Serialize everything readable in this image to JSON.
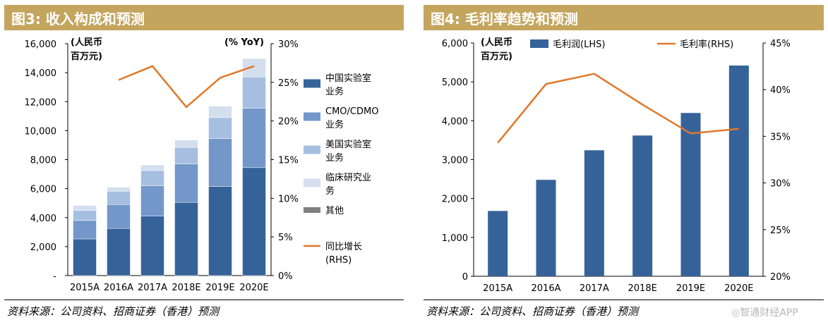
{
  "watermark": "◎智通财经APP",
  "colors": {
    "header": "#C4A55E",
    "china_lab": "#36629A",
    "cmo": "#7397C9",
    "us_lab": "#A6BFE0",
    "clinical": "#D3DFEF",
    "other": "#808080",
    "growth_line": "#E0782A",
    "gross_profit_bar": "#36629A",
    "margin_line": "#E0782A"
  },
  "left_panel": {
    "title": "图3:  收入构成和预测",
    "source": "资料来源：公司资料、招商证券（香港）预测"
  },
  "right_panel": {
    "title": "图4:  毛利率趋势和预测",
    "source": "资料来源：公司资料、招商证券（香港）预测"
  },
  "chart_data": [
    {
      "type": "bar",
      "stacked": true,
      "categories": [
        "2015A",
        "2016A",
        "2017A",
        "2018E",
        "2019E",
        "2020E"
      ],
      "left_unit_line1": "(人民币",
      "left_unit_line2": "百万元)",
      "right_unit": "(% YoY)",
      "ylim": [
        0,
        16000
      ],
      "yticks": [
        "-",
        "2,000",
        "4,000",
        "6,000",
        "8,000",
        "10,000",
        "12,000",
        "14,000",
        "16,000"
      ],
      "ylim_right": [
        0,
        30
      ],
      "yticks_right": [
        "0%",
        "5%",
        "10%",
        "15%",
        "20%",
        "25%",
        "30%"
      ],
      "series": [
        {
          "name": "中国实验室业务",
          "legend_lines": [
            "中国实验室",
            "业务"
          ],
          "values": [
            2530,
            3250,
            4100,
            5050,
            6150,
            7450
          ]
        },
        {
          "name": "CMO/CDMO业务",
          "legend_lines": [
            "CMO/CDMO",
            "业务"
          ],
          "values": [
            1270,
            1650,
            2100,
            2650,
            3300,
            4100
          ]
        },
        {
          "name": "美国实验室业务",
          "legend_lines": [
            "美国实验室",
            "业务"
          ],
          "values": [
            700,
            920,
            1050,
            1150,
            1450,
            2150
          ]
        },
        {
          "name": "临床研究业务",
          "legend_lines": [
            "临床研究业",
            "务"
          ],
          "values": [
            330,
            280,
            380,
            500,
            800,
            1250
          ]
        },
        {
          "name": "其他",
          "legend_lines": [
            "其他"
          ],
          "values": [
            20,
            20,
            20,
            20,
            20,
            30
          ]
        }
      ],
      "line_series": {
        "name": "同比增长(RHS)",
        "legend_lines": [
          "同比增长",
          "(RHS)"
        ],
        "values": [
          null,
          25.3,
          27.1,
          21.8,
          25.6,
          27.1
        ]
      }
    },
    {
      "type": "bar",
      "categories": [
        "2015A",
        "2016A",
        "2017A",
        "2018E",
        "2019E",
        "2020E"
      ],
      "left_unit_line1": "(人民币",
      "left_unit_line2": "百万元)",
      "ylim": [
        0,
        6000
      ],
      "yticks": [
        "0",
        "1,000",
        "2,000",
        "3,000",
        "4,000",
        "5,000",
        "6,000"
      ],
      "ylim_right": [
        20,
        45
      ],
      "yticks_right": [
        "20%",
        "25%",
        "30%",
        "35%",
        "40%",
        "45%"
      ],
      "series": [
        {
          "name": "毛利润(LHS)",
          "values": [
            1680,
            2480,
            3240,
            3620,
            4200,
            5420
          ]
        }
      ],
      "line_series": {
        "name": "毛利率(RHS)",
        "values": [
          34.3,
          40.6,
          41.7,
          38.4,
          35.3,
          35.8
        ]
      }
    }
  ]
}
